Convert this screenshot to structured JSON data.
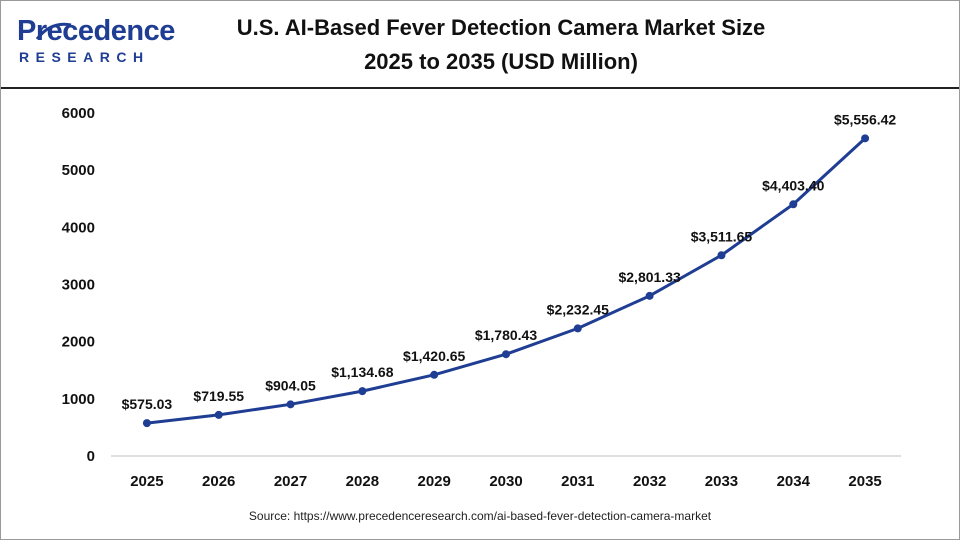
{
  "logo": {
    "word": "Precedence",
    "sub": "RESEARCH",
    "brand_color": "#1f3e93"
  },
  "header": {
    "title_line1": "U.S. AI-Based Fever Detection Camera Market Size",
    "title_line2": "2025 to 2035 (USD Million)"
  },
  "chart_data": {
    "type": "line",
    "title": "U.S. AI-Based Fever Detection Camera Market Size 2025 to 2035 (USD Million)",
    "xlabel": "",
    "ylabel": "",
    "x": [
      "2025",
      "2026",
      "2027",
      "2028",
      "2029",
      "2030",
      "2031",
      "2032",
      "2033",
      "2034",
      "2035"
    ],
    "series": [
      {
        "values": [
          575.03,
          719.55,
          904.05,
          1134.68,
          1420.65,
          1780.43,
          2232.45,
          2801.33,
          3511.65,
          4403.4,
          5556.42
        ],
        "color": "#1f3e93"
      }
    ],
    "data_labels": [
      "$575.03",
      "$719.55",
      "$904.05",
      "$1,134.68",
      "$1,420.65",
      "$1,780.43",
      "$2,232.45",
      "$2,801.33",
      "$3,511.65",
      "$4,403.40",
      "$5,556.42"
    ],
    "y_ticks": [
      "0",
      "1000",
      "2000",
      "3000",
      "4000",
      "5000",
      "6000"
    ],
    "ylim": [
      0,
      6000
    ],
    "grid": false,
    "legend": "none"
  },
  "footer": {
    "source": "Source: https://www.precedenceresearch.com/ai-based-fever-detection-camera-market"
  }
}
